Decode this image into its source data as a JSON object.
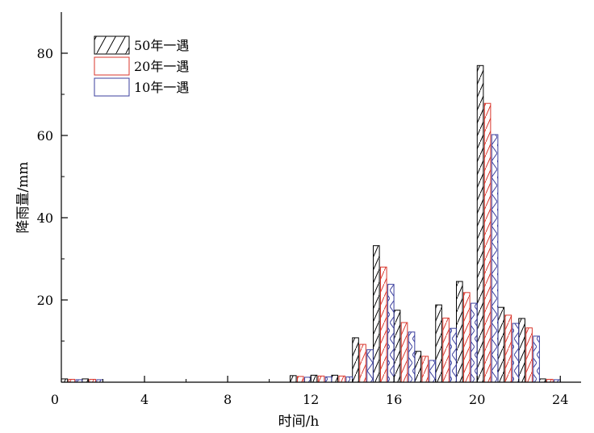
{
  "chart_data": {
    "type": "bar",
    "xlabel": "时间/h",
    "ylabel": "降雨量/mm",
    "xlim": [
      0,
      25
    ],
    "ylim": [
      0,
      90
    ],
    "x_ticks": [
      0,
      4,
      8,
      12,
      16,
      20,
      24
    ],
    "x_tick_labels": [
      "0",
      "4",
      "8",
      "12",
      "16",
      "20",
      "24"
    ],
    "y_ticks": [
      20,
      40,
      60,
      80
    ],
    "y_tick_labels": [
      "20",
      "40",
      "60",
      "80"
    ],
    "legend_position": "top-left",
    "hours": [
      1,
      2,
      3,
      4,
      5,
      6,
      7,
      8,
      9,
      10,
      11,
      12,
      13,
      14,
      15,
      16,
      17,
      18,
      19,
      20,
      21,
      22,
      23,
      24
    ],
    "series": [
      {
        "name": "50年一遇",
        "color": "#000000",
        "pattern": "diagonal",
        "values": [
          0.8,
          0.8,
          0,
          0,
          0,
          0,
          0,
          0,
          0,
          0,
          0,
          1.6,
          1.7,
          1.7,
          10.8,
          33.2,
          17.5,
          7.5,
          18.8,
          24.5,
          77.0,
          18.2,
          15.5,
          0.8
        ]
      },
      {
        "name": "20年一遇",
        "color": "#d9352b",
        "pattern": "diagonal",
        "values": [
          0.7,
          0.7,
          0,
          0,
          0,
          0,
          0,
          0,
          0,
          0,
          0,
          1.4,
          1.5,
          1.5,
          9.2,
          28.0,
          14.5,
          6.3,
          15.6,
          21.8,
          67.8,
          16.3,
          13.2,
          0.7
        ]
      },
      {
        "name": "10年一遇",
        "color": "#3b3f9e",
        "pattern": "cross",
        "values": [
          0.6,
          0.6,
          0,
          0,
          0,
          0,
          0,
          0,
          0,
          0,
          0,
          1.2,
          1.3,
          1.3,
          7.9,
          23.8,
          12.2,
          5.3,
          13.1,
          19.2,
          60.2,
          14.3,
          11.2,
          0.6
        ]
      }
    ]
  }
}
